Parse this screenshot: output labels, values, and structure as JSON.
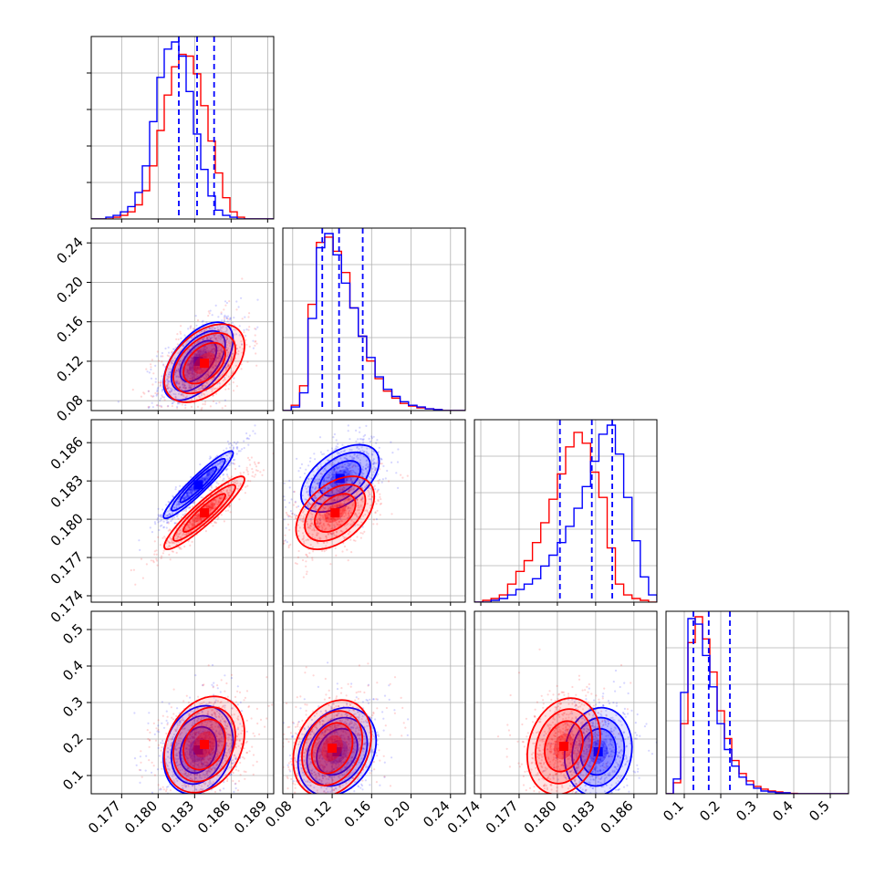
{
  "chart_data": {
    "type": "corner",
    "description_colors": {
      "series_a": "#0000ff",
      "series_b": "#ff0000",
      "grid": "#b0b0b0"
    },
    "series": [
      {
        "color": "#0000ff"
      },
      {
        "color": "#ff0000"
      }
    ],
    "parameters": [
      {
        "range": [
          0.1745,
          0.1895
        ],
        "ticks": [
          "0.177",
          "0.180",
          "0.183",
          "0.186",
          "0.189"
        ],
        "tick_values": [
          0.177,
          0.18,
          0.183,
          0.186,
          0.189
        ]
      },
      {
        "range": [
          0.07,
          0.255
        ],
        "ticks": [
          "0.08",
          "0.12",
          "0.16",
          "0.20",
          "0.24"
        ],
        "tick_values": [
          0.08,
          0.12,
          0.16,
          0.2,
          0.24
        ]
      },
      {
        "range": [
          0.1735,
          0.1878
        ],
        "ticks": [
          "0.174",
          "0.177",
          "0.180",
          "0.183",
          "0.186"
        ],
        "tick_values": [
          0.174,
          0.177,
          0.18,
          0.183,
          0.186
        ]
      },
      {
        "range": [
          0.05,
          0.55
        ],
        "ticks": [
          "0.1",
          "0.2",
          "0.3",
          "0.4",
          "0.5"
        ],
        "tick_values": [
          0.1,
          0.2,
          0.3,
          0.4,
          0.5
        ]
      }
    ],
    "quantile_lines": [
      [
        0.1817,
        0.1832,
        0.1846
      ],
      [
        0.11,
        0.127,
        0.151
      ],
      [
        0.1802,
        0.1827,
        0.1843
      ],
      [
        0.125,
        0.167,
        0.225
      ]
    ],
    "histograms": [
      {
        "edges_start": 0.1745,
        "bin": 0.0006,
        "a": [
          0,
          0,
          0.01,
          0.02,
          0.04,
          0.07,
          0.15,
          0.3,
          0.55,
          0.8,
          0.96,
          1.0,
          0.92,
          0.72,
          0.48,
          0.28,
          0.13,
          0.05,
          0.02,
          0.01,
          0,
          0,
          0,
          0,
          0
        ],
        "b": [
          0,
          0,
          0,
          0.01,
          0.02,
          0.04,
          0.08,
          0.16,
          0.3,
          0.5,
          0.7,
          0.86,
          0.93,
          0.92,
          0.82,
          0.64,
          0.44,
          0.26,
          0.12,
          0.04,
          0.01,
          0,
          0,
          0,
          0
        ]
      },
      {
        "edges_start": 0.07,
        "bin": 0.0085,
        "a": [
          0,
          0.02,
          0.1,
          0.52,
          0.92,
          1.0,
          0.88,
          0.72,
          0.58,
          0.42,
          0.3,
          0.19,
          0.12,
          0.08,
          0.05,
          0.03,
          0.02,
          0.01,
          0.005,
          0,
          0,
          0
        ],
        "b": [
          0,
          0.03,
          0.14,
          0.6,
          0.95,
          0.98,
          0.9,
          0.78,
          0.58,
          0.42,
          0.28,
          0.18,
          0.11,
          0.07,
          0.04,
          0.025,
          0.015,
          0.01,
          0.005,
          0,
          0,
          0
        ]
      },
      {
        "edges_start": 0.1735,
        "bin": 0.00065,
        "a": [
          0,
          0,
          0.01,
          0.02,
          0.04,
          0.07,
          0.1,
          0.13,
          0.2,
          0.26,
          0.33,
          0.42,
          0.52,
          0.64,
          0.78,
          0.93,
          0.98,
          0.82,
          0.58,
          0.34,
          0.14,
          0.04,
          0.01
        ],
        "b": [
          0,
          0.01,
          0.02,
          0.04,
          0.1,
          0.17,
          0.23,
          0.33,
          0.44,
          0.57,
          0.71,
          0.86,
          0.94,
          0.88,
          0.72,
          0.58,
          0.3,
          0.1,
          0.04,
          0.02,
          0.01,
          0,
          0
        ]
      },
      {
        "edges_start": 0.05,
        "bin": 0.02,
        "a": [
          0,
          0.08,
          0.55,
          0.95,
          0.92,
          0.75,
          0.58,
          0.38,
          0.24,
          0.15,
          0.09,
          0.05,
          0.03,
          0.015,
          0.01,
          0.005,
          0.005,
          0,
          0,
          0,
          0,
          0,
          0,
          0,
          0
        ],
        "b": [
          0,
          0.06,
          0.38,
          0.82,
          0.96,
          0.84,
          0.66,
          0.45,
          0.3,
          0.18,
          0.11,
          0.07,
          0.04,
          0.025,
          0.015,
          0.01,
          0.005,
          0.002,
          0,
          0,
          0,
          0,
          0,
          0,
          0
        ]
      }
    ],
    "pairs": [
      {
        "i": 1,
        "j": 0,
        "a": {
          "mean": [
            0.1833,
            0.12
          ],
          "sd": [
            0.0013,
            0.018
          ],
          "rho": 0.55
        },
        "b": {
          "mean": [
            0.1838,
            0.118
          ],
          "sd": [
            0.0015,
            0.018
          ],
          "rho": 0.45
        }
      },
      {
        "i": 2,
        "j": 0,
        "a": {
          "mean": [
            0.1833,
            0.1827
          ],
          "sd": [
            0.0013,
            0.0012
          ],
          "rho": 0.94
        },
        "b": {
          "mean": [
            0.1838,
            0.1805
          ],
          "sd": [
            0.0015,
            0.0013
          ],
          "rho": 0.92
        }
      },
      {
        "i": 2,
        "j": 1,
        "a": {
          "mean": [
            0.128,
            0.1832
          ],
          "sd": [
            0.018,
            0.0012
          ],
          "rho": 0.5
        },
        "b": {
          "mean": [
            0.123,
            0.1805
          ],
          "sd": [
            0.018,
            0.0013
          ],
          "rho": 0.45
        }
      },
      {
        "i": 3,
        "j": 0,
        "a": {
          "mean": [
            0.1833,
            0.17
          ],
          "sd": [
            0.0013,
            0.055
          ],
          "rho": 0.2
        },
        "b": {
          "mean": [
            0.1838,
            0.185
          ],
          "sd": [
            0.0015,
            0.06
          ],
          "rho": 0.25
        }
      },
      {
        "i": 3,
        "j": 1,
        "a": {
          "mean": [
            0.125,
            0.165
          ],
          "sd": [
            0.018,
            0.055
          ],
          "rho": 0.25
        },
        "b": {
          "mean": [
            0.12,
            0.175
          ],
          "sd": [
            0.018,
            0.06
          ],
          "rho": 0.25
        }
      },
      {
        "i": 3,
        "j": 2,
        "a": {
          "mean": [
            0.1832,
            0.165
          ],
          "sd": [
            0.0012,
            0.055
          ],
          "rho": 0.1
        },
        "b": {
          "mean": [
            0.1805,
            0.18
          ],
          "sd": [
            0.0013,
            0.06
          ],
          "rho": 0.2
        }
      }
    ]
  }
}
